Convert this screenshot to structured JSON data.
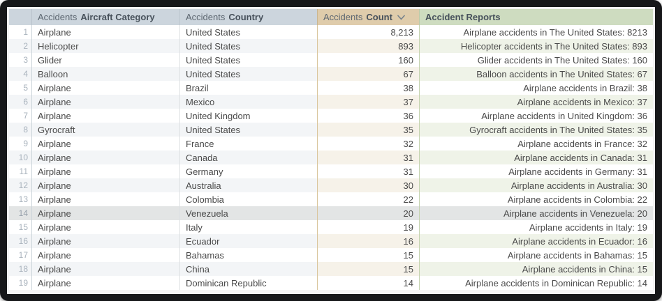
{
  "colors": {
    "frame_bg": "#161719",
    "header_default_bg": "#ccd5dd",
    "header_count_bg": "#dfccab",
    "header_reports_bg": "#cedcc0",
    "row_even_default_bg": "#f3f5f7",
    "row_even_count_bg": "#f6f2e9",
    "row_even_reports_bg": "#eff3e8",
    "highlighted_row_bg": "#e3e5e5",
    "count_column_border": "#d9c59c",
    "reports_column_border": "#c3d2ad",
    "cell_text": "#4a4a4a",
    "row_number_text": "#a9b3bd"
  },
  "table": {
    "highlighted_row": 14,
    "columns": [
      {
        "prefix": "Accidents",
        "label": "Aircraft Category",
        "sort": null
      },
      {
        "prefix": "Accidents",
        "label": "Country",
        "sort": null
      },
      {
        "prefix": "Accidents",
        "label": "Count",
        "sort": "descending",
        "sort_icon": "chevron-down"
      },
      {
        "prefix": "",
        "label": "Accident Reports",
        "sort": null
      }
    ],
    "rows": [
      {
        "num": 1,
        "category": "Airplane",
        "country": "United States",
        "count": "8,213",
        "report": "Airplane accidents in The United States: 8213"
      },
      {
        "num": 2,
        "category": "Helicopter",
        "country": "United States",
        "count": "893",
        "report": "Helicopter accidents in The United States: 893"
      },
      {
        "num": 3,
        "category": "Glider",
        "country": "United States",
        "count": "160",
        "report": "Glider accidents in The United States: 160"
      },
      {
        "num": 4,
        "category": "Balloon",
        "country": "United States",
        "count": "67",
        "report": "Balloon accidents in The United States: 67"
      },
      {
        "num": 5,
        "category": "Airplane",
        "country": "Brazil",
        "count": "38",
        "report": "Airplane accidents in Brazil: 38"
      },
      {
        "num": 6,
        "category": "Airplane",
        "country": "Mexico",
        "count": "37",
        "report": "Airplane accidents in Mexico: 37"
      },
      {
        "num": 7,
        "category": "Airplane",
        "country": "United Kingdom",
        "count": "36",
        "report": "Airplane accidents in United Kingdom: 36"
      },
      {
        "num": 8,
        "category": "Gyrocraft",
        "country": "United States",
        "count": "35",
        "report": "Gyrocraft accidents in The United States: 35"
      },
      {
        "num": 9,
        "category": "Airplane",
        "country": "France",
        "count": "32",
        "report": "Airplane accidents in France: 32"
      },
      {
        "num": 10,
        "category": "Airplane",
        "country": "Canada",
        "count": "31",
        "report": "Airplane accidents in Canada: 31"
      },
      {
        "num": 11,
        "category": "Airplane",
        "country": "Germany",
        "count": "31",
        "report": "Airplane accidents in Germany: 31"
      },
      {
        "num": 12,
        "category": "Airplane",
        "country": "Australia",
        "count": "30",
        "report": "Airplane accidents in Australia: 30"
      },
      {
        "num": 13,
        "category": "Airplane",
        "country": "Colombia",
        "count": "22",
        "report": "Airplane accidents in Colombia: 22"
      },
      {
        "num": 14,
        "category": "Airplane",
        "country": "Venezuela",
        "count": "20",
        "report": "Airplane accidents in Venezuela: 20"
      },
      {
        "num": 15,
        "category": "Airplane",
        "country": "Italy",
        "count": "19",
        "report": "Airplane accidents in Italy: 19"
      },
      {
        "num": 16,
        "category": "Airplane",
        "country": "Ecuador",
        "count": "16",
        "report": "Airplane accidents in Ecuador: 16"
      },
      {
        "num": 17,
        "category": "Airplane",
        "country": "Bahamas",
        "count": "15",
        "report": "Airplane accidents in Bahamas: 15"
      },
      {
        "num": 18,
        "category": "Airplane",
        "country": "China",
        "count": "15",
        "report": "Airplane accidents in China: 15"
      },
      {
        "num": 19,
        "category": "Airplane",
        "country": "Dominican Republic",
        "count": "14",
        "report": "Airplane accidents in Dominican Republic: 14"
      }
    ]
  }
}
